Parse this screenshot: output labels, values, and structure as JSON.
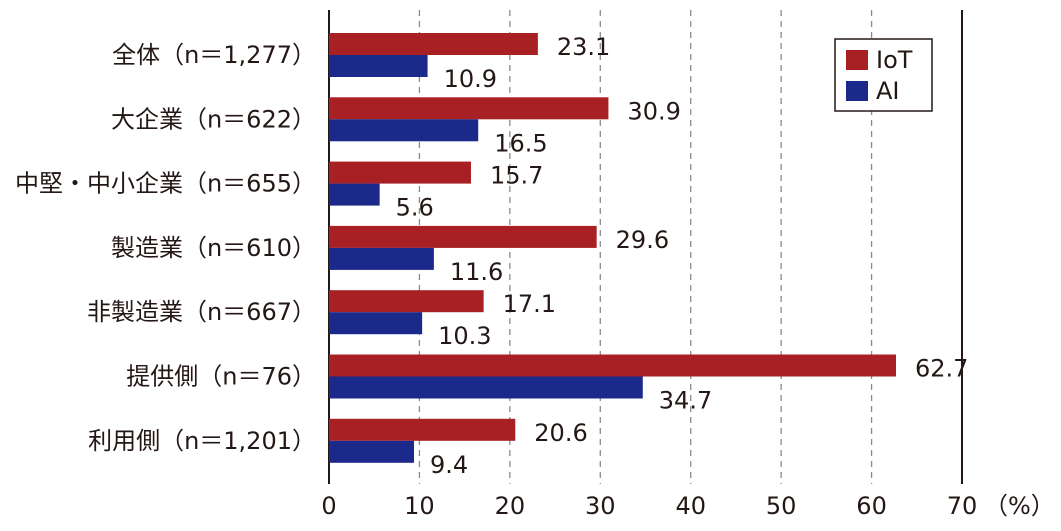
{
  "chart_data": {
    "type": "bar",
    "orientation": "horizontal",
    "categories": [
      "全体（n＝1,277）",
      "大企業（n＝622）",
      "中堅・中小企業（n＝655）",
      "製造業（n＝610）",
      "非製造業（n＝667）",
      "提供側（n＝76）",
      "利用側（n＝1,201）"
    ],
    "series": [
      {
        "name": "IoT",
        "color": "#a81f24",
        "values": [
          23.1,
          30.9,
          15.7,
          29.6,
          17.1,
          62.7,
          20.6
        ]
      },
      {
        "name": "AI",
        "color": "#1b2a8a",
        "values": [
          10.9,
          16.5,
          5.6,
          11.6,
          10.3,
          34.7,
          9.4
        ]
      }
    ],
    "xlim": [
      0,
      70
    ],
    "xticks": [
      "0",
      "10",
      "20",
      "30",
      "40",
      "50",
      "60",
      "70"
    ],
    "unit_label": "（%）",
    "grid": "vertical dashed",
    "legend_position": "top-right"
  }
}
